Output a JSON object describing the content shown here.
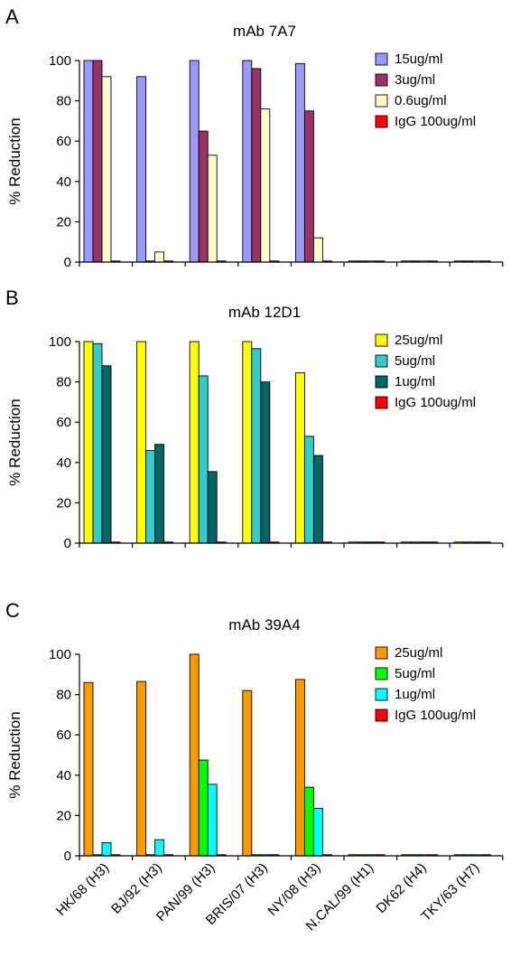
{
  "chart_data": [
    {
      "type": "bar",
      "panel": "A",
      "title": "mAb 7A7",
      "ylabel": "% Reduction",
      "xlabel": "",
      "ylim": [
        0,
        100
      ],
      "yticks": [
        0,
        20,
        40,
        60,
        80,
        100
      ],
      "legend_position": "right",
      "grid": false,
      "categories": [
        "HK/68 (H3)",
        "BJ/92 (H3)",
        "PAN/99 (H3)",
        "BRIS/07 (H3)",
        "NY/08 (H3)",
        "N.CAL/99 (H1)",
        "DK62 (H4)",
        "TKY/63 (H7)"
      ],
      "series": [
        {
          "name": "15ug/ml",
          "color": "#9999ff",
          "values": [
            100,
            92,
            100,
            100,
            98.5,
            0,
            0,
            0
          ]
        },
        {
          "name": "3ug/ml",
          "color": "#993366",
          "values": [
            100,
            0,
            65,
            96,
            75,
            0,
            0,
            0
          ]
        },
        {
          "name": "0.6ug/ml",
          "color": "#ffffcc",
          "values": [
            92,
            5,
            53,
            76,
            12,
            0,
            0,
            0
          ]
        },
        {
          "name": "IgG 100ug/ml",
          "color": "#ff0000",
          "values": [
            0,
            0,
            0,
            0,
            0,
            0,
            0,
            0
          ]
        }
      ]
    },
    {
      "type": "bar",
      "panel": "B",
      "title": "mAb 12D1",
      "ylabel": "% Reduction",
      "xlabel": "",
      "ylim": [
        0,
        100
      ],
      "yticks": [
        0,
        20,
        40,
        60,
        80,
        100
      ],
      "legend_position": "right",
      "grid": false,
      "categories": [
        "HK/68 (H3)",
        "BJ/92 (H3)",
        "PAN/99 (H3)",
        "BRIS/07 (H3)",
        "NY/08 (H3)",
        "N.CAL/99 (H1)",
        "DK62 (H4)",
        "TKY/63 (H7)"
      ],
      "series": [
        {
          "name": "25ug/ml",
          "color": "#ffff00",
          "values": [
            100,
            100,
            100,
            100,
            84.5,
            0,
            0,
            0
          ]
        },
        {
          "name": "5ug/ml",
          "color": "#33cccc",
          "values": [
            99,
            46,
            83,
            96.5,
            53,
            0,
            0,
            0
          ]
        },
        {
          "name": "1ug/ml",
          "color": "#006666",
          "values": [
            88,
            49,
            35.5,
            80,
            43.5,
            0,
            0,
            0
          ]
        },
        {
          "name": "IgG 100ug/ml",
          "color": "#ff0000",
          "values": [
            0,
            0,
            0,
            0,
            0,
            0,
            0,
            0
          ]
        }
      ]
    },
    {
      "type": "bar",
      "panel": "C",
      "title": "mAb 39A4",
      "ylabel": "% Reduction",
      "xlabel": "",
      "ylim": [
        0,
        100
      ],
      "yticks": [
        0,
        20,
        40,
        60,
        80,
        100
      ],
      "legend_position": "right",
      "grid": false,
      "categories": [
        "HK/68 (H3)",
        "BJ/92 (H3)",
        "PAN/99 (H3)",
        "BRIS/07 (H3)",
        "NY/08 (H3)",
        "N.CAL/99 (H1)",
        "DK62 (H4)",
        "TKY/63 (H7)"
      ],
      "series": [
        {
          "name": "25ug/ml",
          "color": "#ff9900",
          "values": [
            86,
            86.5,
            100,
            82,
            87.5,
            0,
            0,
            0
          ]
        },
        {
          "name": "5ug/ml",
          "color": "#00ff00",
          "values": [
            0,
            0,
            47.5,
            0,
            34,
            0,
            0,
            0
          ]
        },
        {
          "name": "1ug/ml",
          "color": "#00ffff",
          "values": [
            6.5,
            8,
            35.5,
            0,
            23.5,
            0,
            0,
            0
          ]
        },
        {
          "name": "IgG 100ug/ml",
          "color": "#ff0000",
          "values": [
            0,
            0,
            0,
            0,
            0,
            0,
            0,
            0
          ]
        }
      ]
    }
  ]
}
